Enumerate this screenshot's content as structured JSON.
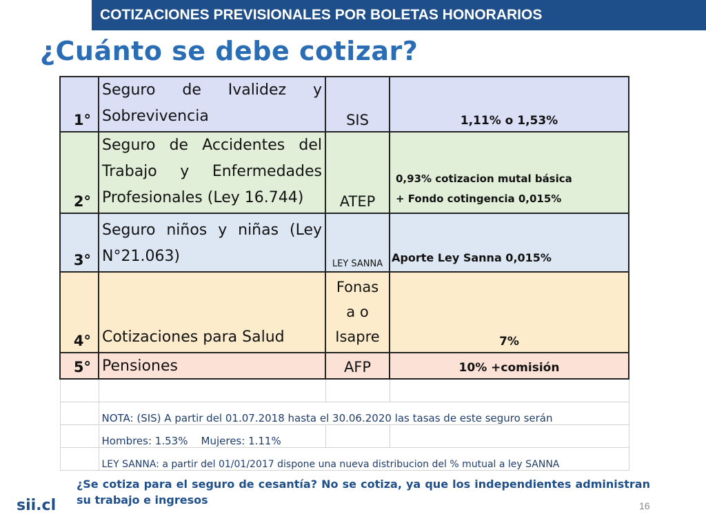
{
  "header": {
    "title": "COTIZACIONES PREVISIONALES POR BOLETAS HONORARIOS"
  },
  "page_title": "¿Cuánto se debe cotizar?",
  "rows": [
    {
      "num": "1°",
      "desc": "Seguro de Ivalidez y Sobrevivencia",
      "code": "SIS",
      "rate": "1,11% o 1,53%",
      "color": "#dadff5"
    },
    {
      "num": "2°",
      "desc": "Seguro de Accidentes del Trabajo y Enfermedades Profesionales (Ley 16.744)",
      "code": "ATEP",
      "rate_line1": "0,93% cotizacion mutal básica",
      "rate_line2": "+ Fondo cotingencia 0,015%",
      "color": "#e1efd9"
    },
    {
      "num": "3°",
      "desc": "Seguro niños y niñas (Ley N°21.063)",
      "code": "LEY SANNA",
      "rate": "Aporte Ley Sanna 0,015%",
      "color": "#dde7f3"
    },
    {
      "num": "4°",
      "desc": "Cotizaciones para Salud",
      "code_line1": "Fonas",
      "code_line2": "a o",
      "code_line3": "Isapre",
      "rate": "7%",
      "color": "#fdeccb"
    },
    {
      "num": "5°",
      "desc": "Pensiones",
      "code": "AFP",
      "rate": "10% +comisión",
      "color": "#fbe1d6"
    }
  ],
  "notes": {
    "sis": "NOTA: (SIS) A partir del 01.07.2018 hasta el 30.06.2020 las tasas de este seguro serán",
    "rates": "Hombres: 1.53%    Mujeres: 1.11%",
    "sanna": "LEY SANNA: a partir del 01/01/2017 dispone una nueva distribucion del % mutual a ley SANNA"
  },
  "question": "¿Se cotiza para el seguro de cesantía? No se cotiza, ya que los independientes administran su trabajo e ingresos",
  "logo": "sii.cl",
  "page_number": "16"
}
